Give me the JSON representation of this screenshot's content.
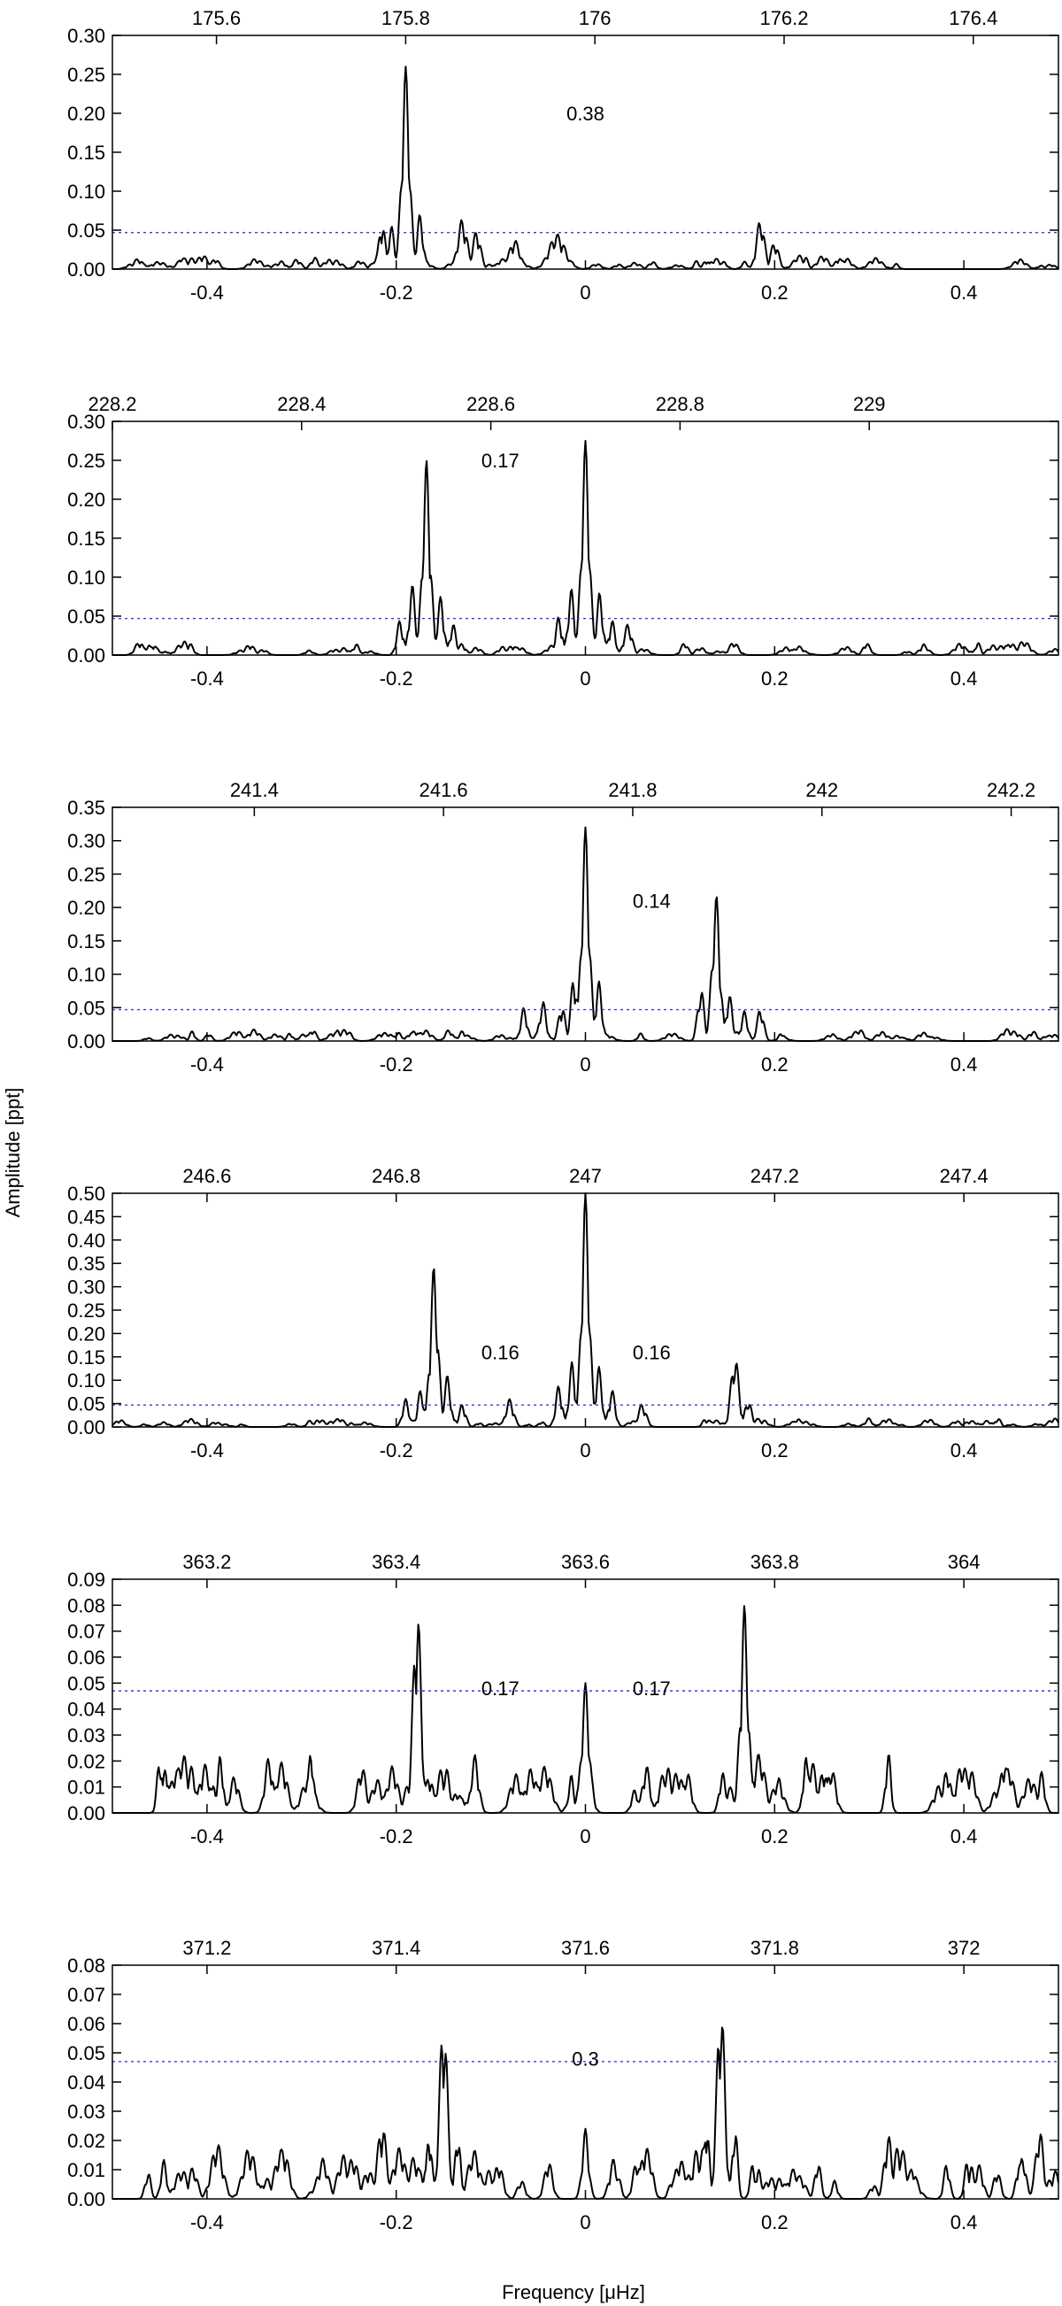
{
  "figure": {
    "ylabel": "Amplitude [ppt]",
    "xlabel": "Frequency [μHz]"
  },
  "chart_data": [
    {
      "type": "line",
      "bottom_xlim": [
        -0.5,
        0.5
      ],
      "bottom_ticks": [
        -0.4,
        -0.2,
        0,
        0.2,
        0.4
      ],
      "bottom_tick_labels": [
        "-0.4",
        "-0.2",
        "0",
        "0.2",
        "0.4"
      ],
      "top_xlim": [
        175.49,
        176.49
      ],
      "top_ticks": [
        175.6,
        175.8,
        176,
        176.2,
        176.4
      ],
      "top_tick_labels": [
        "175.6",
        "175.8",
        "176",
        "176.2",
        "176.4"
      ],
      "ylim": [
        0,
        0.3
      ],
      "yticks": [
        0,
        0.05,
        0.1,
        0.15,
        0.2,
        0.25,
        0.3
      ],
      "ytick_labels": [
        "0.00",
        "0.05",
        "0.10",
        "0.15",
        "0.20",
        "0.25",
        "0.30"
      ],
      "threshold": 0.047,
      "peaks": [
        {
          "x": -0.19,
          "y": 0.26,
          "w": 0.006
        },
        {
          "x": -0.205,
          "y": 0.055,
          "w": 0.005
        },
        {
          "x": -0.175,
          "y": 0.07,
          "w": 0.005
        },
        {
          "x": -0.215,
          "y": 0.06,
          "w": 0.005
        },
        {
          "x": -0.13,
          "y": 0.065,
          "w": 0.007
        },
        {
          "x": -0.115,
          "y": 0.05,
          "w": 0.006
        },
        {
          "x": -0.075,
          "y": 0.038,
          "w": 0.008
        },
        {
          "x": -0.03,
          "y": 0.045,
          "w": 0.012
        },
        {
          "x": 0.185,
          "y": 0.065,
          "w": 0.006
        },
        {
          "x": 0.2,
          "y": 0.035,
          "w": 0.006
        }
      ],
      "noise": 0.014,
      "seed": 11,
      "annotations": [
        {
          "text": "0.38",
          "x": 0.0,
          "y": 0.2
        }
      ]
    },
    {
      "type": "line",
      "bottom_xlim": [
        -0.5,
        0.5
      ],
      "bottom_ticks": [
        -0.4,
        -0.2,
        0,
        0.2,
        0.4
      ],
      "bottom_tick_labels": [
        "-0.4",
        "-0.2",
        "0",
        "0.2",
        "0.4"
      ],
      "top_xlim": [
        228.2,
        229.2
      ],
      "top_ticks": [
        228.2,
        228.4,
        228.6,
        228.8,
        229
      ],
      "top_tick_labels": [
        "228.2",
        "228.4",
        "228.6",
        "228.8",
        "229"
      ],
      "ylim": [
        0,
        0.3
      ],
      "yticks": [
        0,
        0.05,
        0.1,
        0.15,
        0.2,
        0.25,
        0.3
      ],
      "ytick_labels": [
        "0.00",
        "0.05",
        "0.10",
        "0.15",
        "0.20",
        "0.25",
        "0.30"
      ],
      "threshold": 0.047,
      "peaks": [
        {
          "x": -0.168,
          "y": 0.25,
          "w": 0.006
        },
        {
          "x": -0.183,
          "y": 0.09,
          "w": 0.005
        },
        {
          "x": -0.153,
          "y": 0.075,
          "w": 0.005
        },
        {
          "x": -0.196,
          "y": 0.045,
          "w": 0.005
        },
        {
          "x": -0.14,
          "y": 0.04,
          "w": 0.005
        },
        {
          "x": 0.0,
          "y": 0.275,
          "w": 0.006
        },
        {
          "x": -0.015,
          "y": 0.085,
          "w": 0.005
        },
        {
          "x": 0.015,
          "y": 0.08,
          "w": 0.005
        },
        {
          "x": -0.028,
          "y": 0.05,
          "w": 0.005
        },
        {
          "x": 0.028,
          "y": 0.045,
          "w": 0.005
        },
        {
          "x": 0.045,
          "y": 0.04,
          "w": 0.006
        }
      ],
      "noise": 0.014,
      "seed": 23,
      "annotations": [
        {
          "text": "0.17",
          "x": -0.09,
          "y": 0.25
        }
      ]
    },
    {
      "type": "line",
      "bottom_xlim": [
        -0.5,
        0.5
      ],
      "bottom_ticks": [
        -0.4,
        -0.2,
        0,
        0.2,
        0.4
      ],
      "bottom_tick_labels": [
        "-0.4",
        "-0.2",
        "0",
        "0.2",
        "0.4"
      ],
      "top_xlim": [
        241.25,
        242.25
      ],
      "top_ticks": [
        241.4,
        241.6,
        241.8,
        242,
        242.2
      ],
      "top_tick_labels": [
        "241.4",
        "241.6",
        "241.8",
        "242",
        "242.2"
      ],
      "ylim": [
        0,
        0.35
      ],
      "yticks": [
        0,
        0.05,
        0.1,
        0.15,
        0.2,
        0.25,
        0.3,
        0.35
      ],
      "ytick_labels": [
        "0.00",
        "0.05",
        "0.10",
        "0.15",
        "0.20",
        "0.25",
        "0.30",
        "0.35"
      ],
      "threshold": 0.047,
      "peaks": [
        {
          "x": 0.0,
          "y": 0.32,
          "w": 0.006
        },
        {
          "x": -0.012,
          "y": 0.1,
          "w": 0.005
        },
        {
          "x": 0.014,
          "y": 0.09,
          "w": 0.005
        },
        {
          "x": -0.025,
          "y": 0.055,
          "w": 0.005
        },
        {
          "x": -0.045,
          "y": 0.06,
          "w": 0.005
        },
        {
          "x": -0.065,
          "y": 0.05,
          "w": 0.005
        },
        {
          "x": 0.138,
          "y": 0.22,
          "w": 0.006
        },
        {
          "x": 0.122,
          "y": 0.08,
          "w": 0.005
        },
        {
          "x": 0.152,
          "y": 0.07,
          "w": 0.005
        },
        {
          "x": 0.168,
          "y": 0.045,
          "w": 0.005
        },
        {
          "x": 0.185,
          "y": 0.05,
          "w": 0.005
        }
      ],
      "noise": 0.014,
      "seed": 37,
      "annotations": [
        {
          "text": "0.14",
          "x": 0.07,
          "y": 0.21
        }
      ]
    },
    {
      "type": "line",
      "bottom_xlim": [
        -0.5,
        0.5
      ],
      "bottom_ticks": [
        -0.4,
        -0.2,
        0,
        0.2,
        0.4
      ],
      "bottom_tick_labels": [
        "-0.4",
        "-0.2",
        "0",
        "0.2",
        "0.4"
      ],
      "top_xlim": [
        246.5,
        247.5
      ],
      "top_ticks": [
        246.6,
        246.8,
        247,
        247.2,
        247.4
      ],
      "top_tick_labels": [
        "246.6",
        "246.8",
        "247",
        "247.2",
        "247.4"
      ],
      "ylim": [
        0,
        0.5
      ],
      "yticks": [
        0,
        0.05,
        0.1,
        0.15,
        0.2,
        0.25,
        0.3,
        0.35,
        0.4,
        0.45,
        0.5
      ],
      "ytick_labels": [
        "0.00",
        "0.05",
        "0.10",
        "0.15",
        "0.20",
        "0.25",
        "0.30",
        "0.35",
        "0.40",
        "0.45",
        "0.50"
      ],
      "threshold": 0.047,
      "peaks": [
        {
          "x": 0.0,
          "y": 0.5,
          "w": 0.006
        },
        {
          "x": -0.014,
          "y": 0.14,
          "w": 0.005
        },
        {
          "x": 0.014,
          "y": 0.13,
          "w": 0.005
        },
        {
          "x": -0.028,
          "y": 0.09,
          "w": 0.005
        },
        {
          "x": 0.028,
          "y": 0.08,
          "w": 0.005
        },
        {
          "x": -0.16,
          "y": 0.345,
          "w": 0.006
        },
        {
          "x": -0.146,
          "y": 0.11,
          "w": 0.005
        },
        {
          "x": -0.174,
          "y": 0.08,
          "w": 0.005
        },
        {
          "x": -0.19,
          "y": 0.06,
          "w": 0.005
        },
        {
          "x": -0.13,
          "y": 0.05,
          "w": 0.005
        },
        {
          "x": 0.158,
          "y": 0.155,
          "w": 0.006
        },
        {
          "x": 0.172,
          "y": 0.06,
          "w": 0.005
        },
        {
          "x": -0.08,
          "y": 0.06,
          "w": 0.006
        },
        {
          "x": 0.06,
          "y": 0.05,
          "w": 0.006
        }
      ],
      "noise": 0.015,
      "seed": 53,
      "annotations": [
        {
          "text": "0.16",
          "x": -0.09,
          "y": 0.16
        },
        {
          "text": "0.16",
          "x": 0.07,
          "y": 0.16
        }
      ]
    },
    {
      "type": "line",
      "bottom_xlim": [
        -0.5,
        0.5
      ],
      "bottom_ticks": [
        -0.4,
        -0.2,
        0,
        0.2,
        0.4
      ],
      "bottom_tick_labels": [
        "-0.4",
        "-0.2",
        "0",
        "0.2",
        "0.4"
      ],
      "top_xlim": [
        363.1,
        364.1
      ],
      "top_ticks": [
        363.2,
        363.4,
        363.6,
        363.8,
        364
      ],
      "top_tick_labels": [
        "363.2",
        "363.4",
        "363.6",
        "363.8",
        "364"
      ],
      "ylim": [
        0,
        0.09
      ],
      "yticks": [
        0,
        0.01,
        0.02,
        0.03,
        0.04,
        0.05,
        0.06,
        0.07,
        0.08,
        0.09
      ],
      "ytick_labels": [
        "0.00",
        "0.01",
        "0.02",
        "0.03",
        "0.04",
        "0.05",
        "0.06",
        "0.07",
        "0.08",
        "0.09"
      ],
      "threshold": 0.047,
      "peaks": [
        {
          "x": -0.178,
          "y": 0.082,
          "w": 0.006
        },
        {
          "x": 0.0,
          "y": 0.05,
          "w": 0.006
        },
        {
          "x": 0.168,
          "y": 0.08,
          "w": 0.006
        },
        {
          "x": -0.29,
          "y": 0.025,
          "w": 0.004
        },
        {
          "x": 0.32,
          "y": 0.024,
          "w": 0.004
        },
        {
          "x": -0.45,
          "y": 0.022,
          "w": 0.004
        }
      ],
      "noise": 0.018,
      "seed": 71,
      "annotations": [
        {
          "text": "0.17",
          "x": -0.09,
          "y": 0.048
        },
        {
          "text": "0.17",
          "x": 0.07,
          "y": 0.048
        }
      ]
    },
    {
      "type": "line",
      "bottom_xlim": [
        -0.5,
        0.5
      ],
      "bottom_ticks": [
        -0.4,
        -0.2,
        0,
        0.2,
        0.4
      ],
      "bottom_tick_labels": [
        "-0.4",
        "-0.2",
        "0",
        "0.2",
        "0.4"
      ],
      "top_xlim": [
        371.1,
        372.1
      ],
      "top_ticks": [
        371.2,
        371.4,
        371.6,
        371.8,
        372
      ],
      "top_tick_labels": [
        "371.2",
        "371.4",
        "371.6",
        "371.8",
        "372"
      ],
      "ylim": [
        0,
        0.08
      ],
      "yticks": [
        0,
        0.01,
        0.02,
        0.03,
        0.04,
        0.05,
        0.06,
        0.07,
        0.08
      ],
      "ytick_labels": [
        "0.00",
        "0.01",
        "0.02",
        "0.03",
        "0.04",
        "0.05",
        "0.06",
        "0.07",
        "0.08"
      ],
      "threshold": 0.047,
      "peaks": [
        {
          "x": -0.15,
          "y": 0.064,
          "w": 0.006
        },
        {
          "x": 0.143,
          "y": 0.07,
          "w": 0.006
        },
        {
          "x": -0.215,
          "y": 0.026,
          "w": 0.007
        },
        {
          "x": 0.0,
          "y": 0.024,
          "w": 0.005
        },
        {
          "x": 0.32,
          "y": 0.022,
          "w": 0.006
        },
        {
          "x": 0.48,
          "y": 0.024,
          "w": 0.006
        },
        {
          "x": -0.165,
          "y": 0.024,
          "w": 0.004
        },
        {
          "x": -0.135,
          "y": 0.024,
          "w": 0.004
        },
        {
          "x": 0.128,
          "y": 0.028,
          "w": 0.004
        },
        {
          "x": 0.158,
          "y": 0.026,
          "w": 0.004
        }
      ],
      "noise": 0.015,
      "seed": 89,
      "annotations": [
        {
          "text": "0.3",
          "x": 0.0,
          "y": 0.048
        }
      ]
    }
  ]
}
